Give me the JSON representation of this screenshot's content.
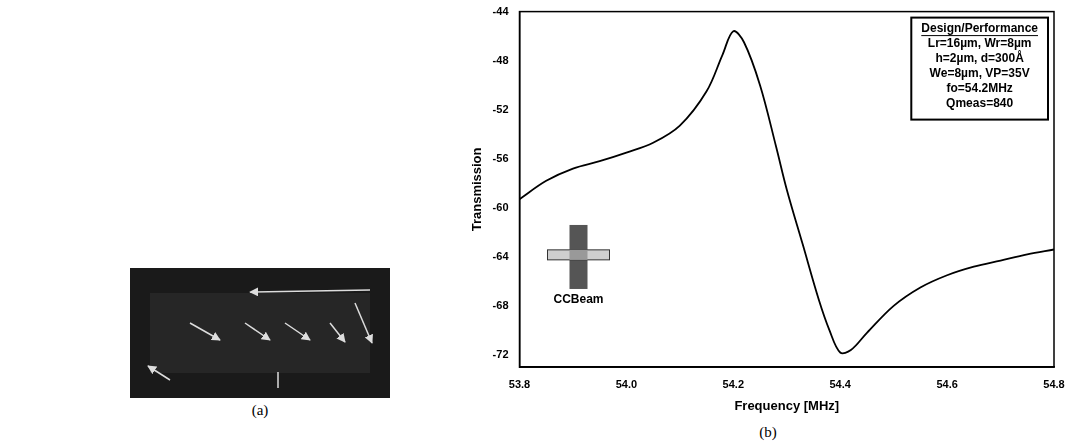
{
  "image_panel": {
    "label": "(a)"
  },
  "chart_data": {
    "type": "line",
    "panel_label": "(b)",
    "x_label": "Frequency [MHz]",
    "y_label": "Transmission",
    "color": "#000000",
    "grid": false,
    "x": [
      53.8,
      53.85,
      53.9,
      53.95,
      54.0,
      54.05,
      54.1,
      54.15,
      54.18,
      54.2,
      54.22,
      54.25,
      54.28,
      54.3,
      54.33,
      54.36,
      54.38,
      54.4,
      54.42,
      54.45,
      54.5,
      54.55,
      54.6,
      54.65,
      54.7,
      54.75,
      54.8
    ],
    "values": [
      -59.3,
      -57.8,
      -56.8,
      -56.2,
      -55.5,
      -54.7,
      -53.3,
      -50.5,
      -47.5,
      -45.6,
      -46.5,
      -50,
      -55,
      -58.5,
      -63,
      -67.5,
      -70,
      -71.8,
      -71.6,
      -70.2,
      -68,
      -66.5,
      -65.5,
      -64.8,
      -64.3,
      -63.8,
      -63.4
    ],
    "xlim": [
      53.8,
      54.8
    ],
    "xticks": [
      53.8,
      {
        "value": 54,
        "label": "54.0"
      },
      54.2,
      54.4,
      54.6,
      54.8
    ],
    "ylim": [
      -73,
      -44
    ],
    "yticks": [
      -72,
      -68,
      -64,
      -60,
      -56,
      -52,
      -48,
      -44
    ],
    "annotations": {
      "title": "Design/Performance",
      "lines": [
        "Lr=16µm, Wr=8µm",
        "h=2µm, d=300Å",
        "We=8µm, VP=35V",
        "fo=54.2MHz",
        "Qmeas=840"
      ]
    },
    "inset_label": "CCBeam"
  }
}
